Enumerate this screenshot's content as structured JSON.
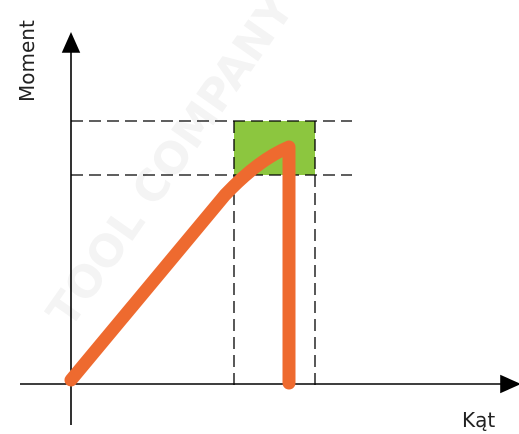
{
  "axes": {
    "y_label": "Moment",
    "x_label": "Kąt"
  },
  "watermark": {
    "text": "TOOL COMPANY"
  },
  "colors": {
    "axis": "#000000",
    "guide": "#000000",
    "curve": "#ee6a2f",
    "tolerance_box": "#8cc63f",
    "watermark": "#f4f4f4"
  }
}
